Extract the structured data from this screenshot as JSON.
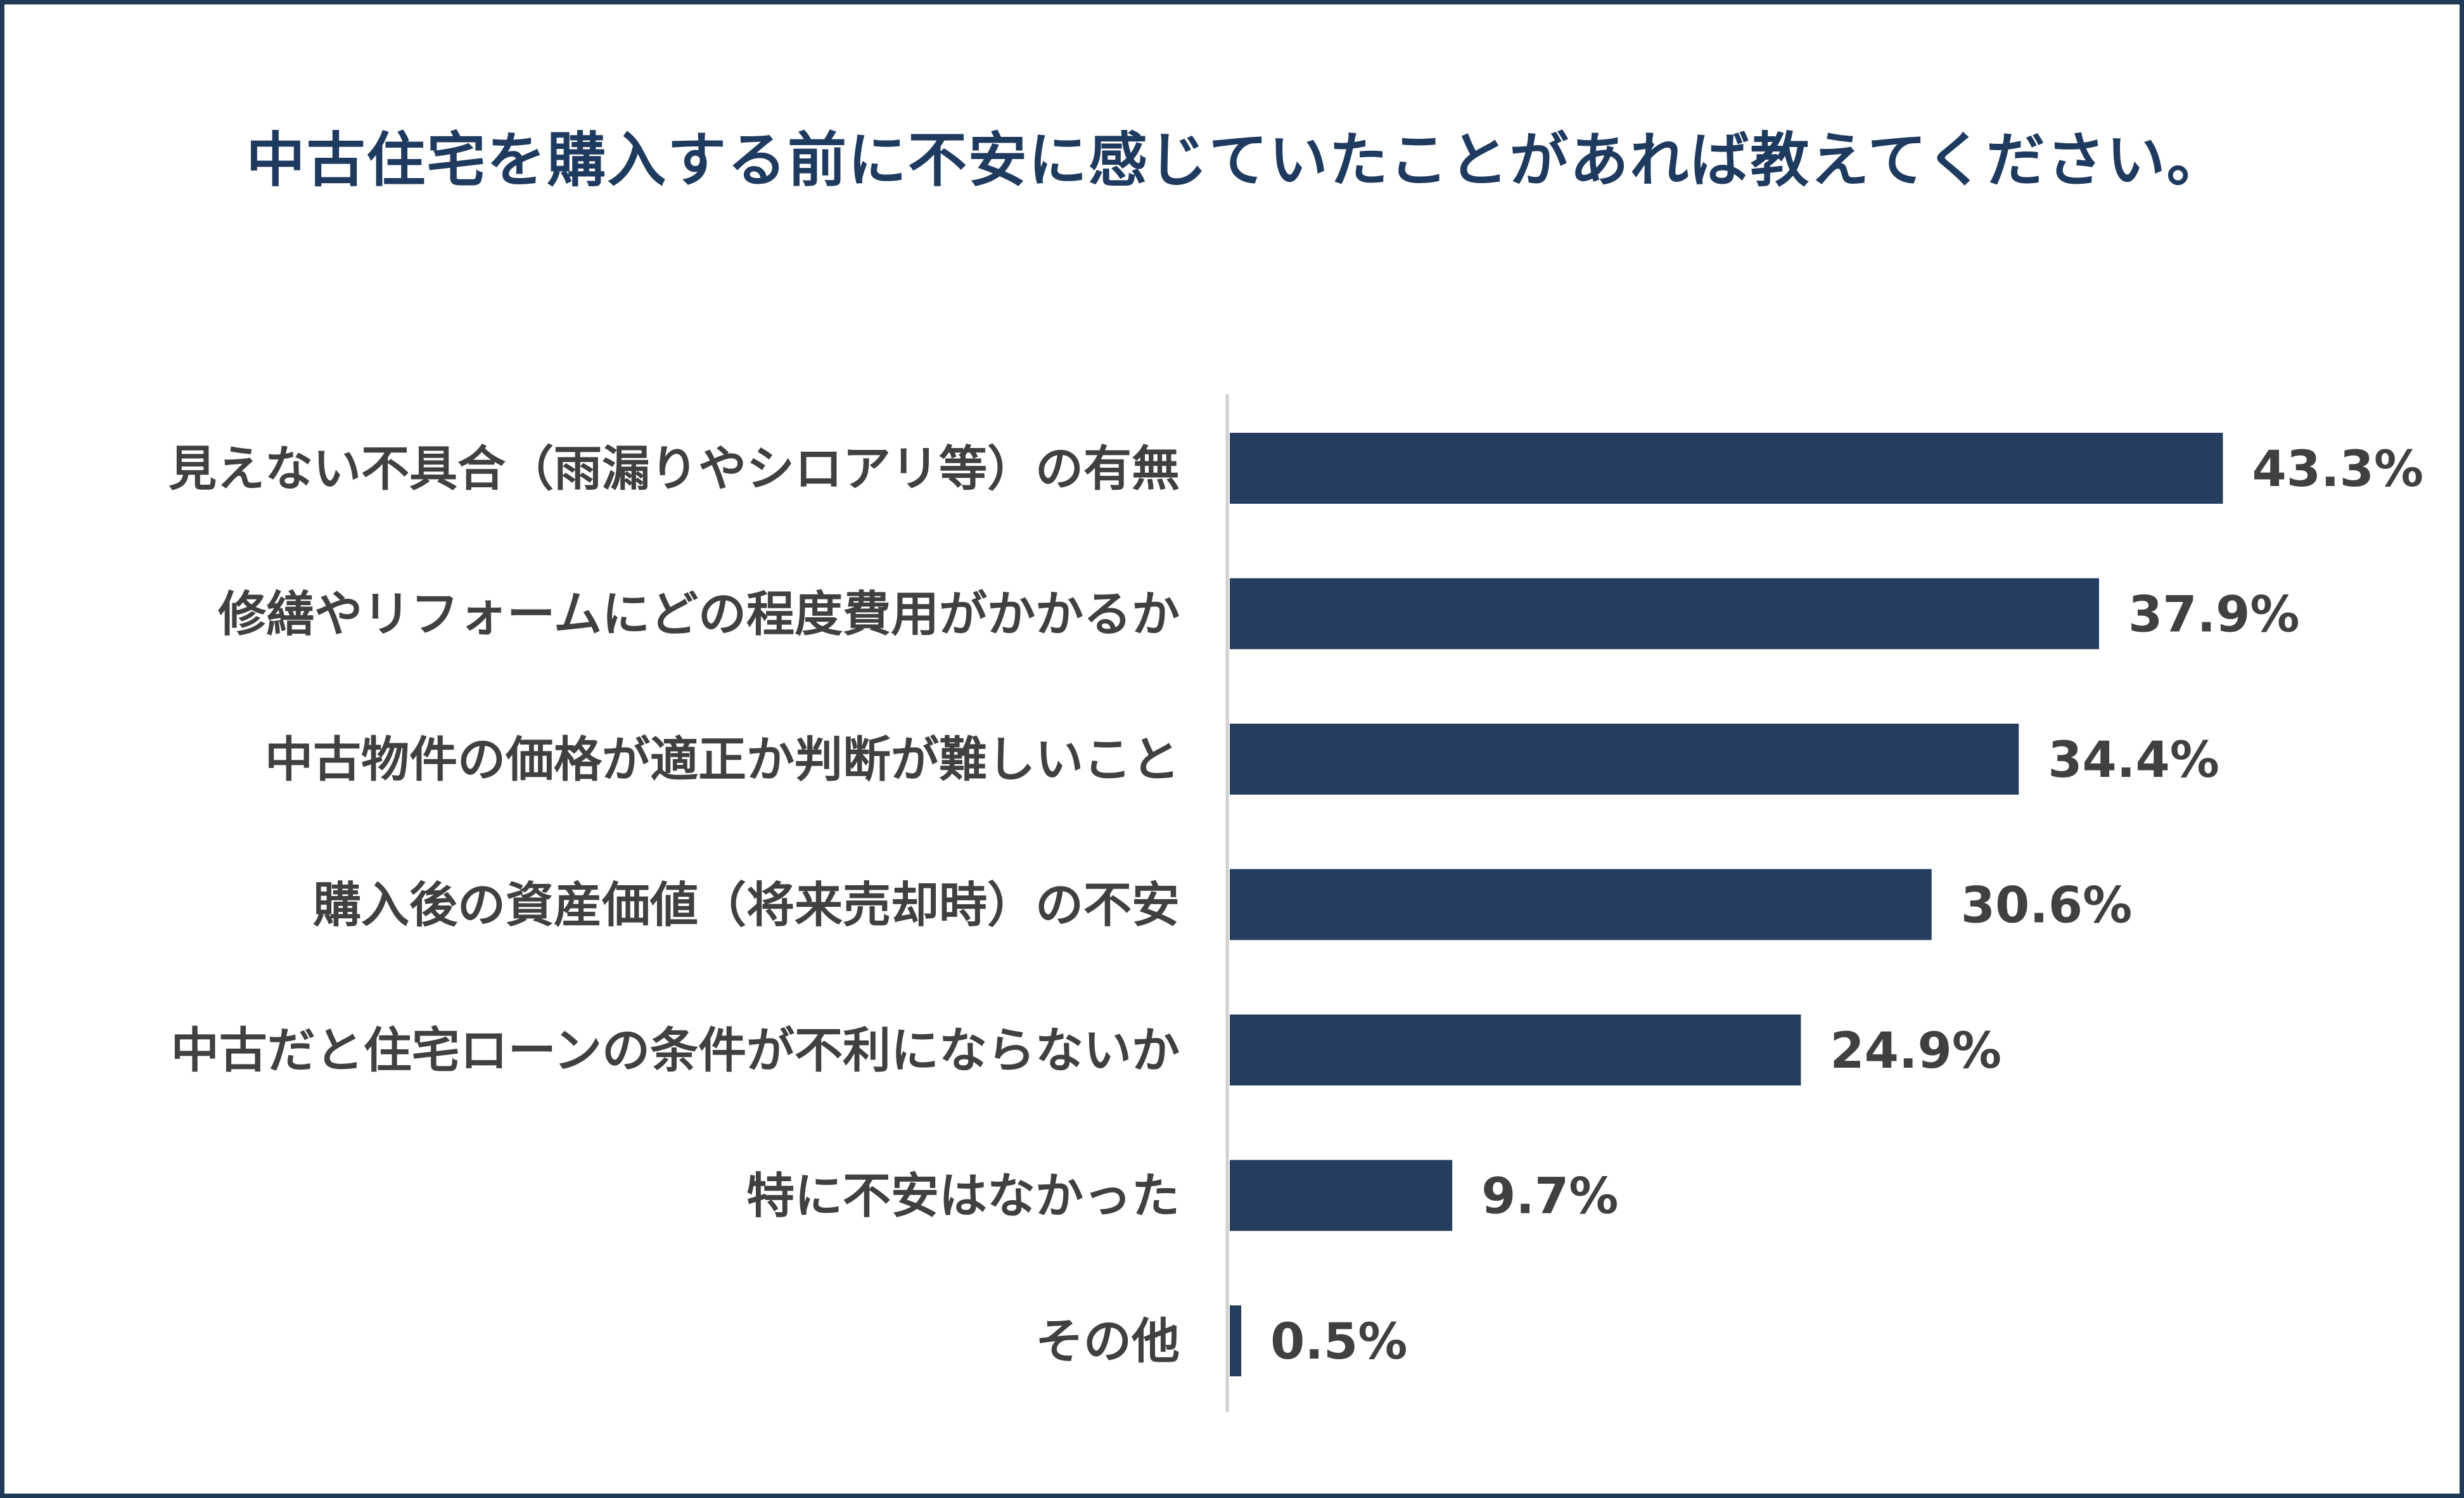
{
  "chart_data": {
    "type": "bar",
    "orientation": "horizontal",
    "title": "中古住宅を購入する前に不安に感じていたことがあれば教えてください。",
    "categories": [
      "見えない不具合（雨漏りやシロアリ等）の有無",
      "修繕やリフォームにどの程度費用がかかるか",
      "中古物件の価格が適正か判断が難しいこと",
      "購入後の資産価値（将来売却時）の不安",
      "中古だと住宅ローンの条件が不利にならないか",
      "特に不安はなかった",
      "その他"
    ],
    "values": [
      43.3,
      37.9,
      34.4,
      30.6,
      24.9,
      9.7,
      0.5
    ],
    "value_labels": [
      "43.3%",
      "37.9%",
      "34.4%",
      "30.6%",
      "24.9%",
      "9.7%",
      "0.5%"
    ],
    "unit": "%",
    "xlim": [
      0,
      50
    ],
    "grid": false,
    "legend": "none",
    "bar_color": "#253d5e",
    "axis_color": "#d0d0d0",
    "frame_color": "#1f3a56",
    "title_color": "#1f3a5f"
  }
}
